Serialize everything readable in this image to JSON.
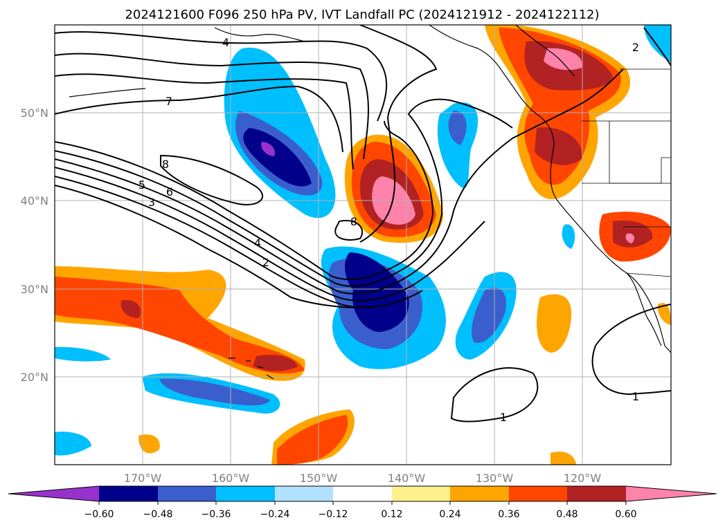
{
  "title": "2024121600 F096 250 hPa PV, IVT Landfall PC (2024121912 - 2024122112)",
  "lat_labels": [
    "50°N",
    "40°N",
    "30°N",
    "20°N"
  ],
  "lon_labels": [
    "170°W",
    "160°W",
    "150°W",
    "140°W",
    "130°W",
    "120°W"
  ],
  "colorbar": {
    "ticks": [
      "−0.60",
      "−0.48",
      "−0.36",
      "−0.24",
      "−0.12",
      "0.12",
      "0.24",
      "0.36",
      "0.48",
      "0.60"
    ],
    "colors": [
      "#9932cc",
      "#00008b",
      "#3a5fcd",
      "#00bfff",
      "#b0e2ff",
      "#ffffff",
      "#fff08c",
      "#ffa500",
      "#ff4500",
      "#b22222",
      "#ff82ab"
    ]
  },
  "contour_labels": [
    "4",
    "7",
    "8",
    "5",
    "6",
    "3",
    "8",
    "4",
    "2",
    "2",
    "1",
    "1"
  ],
  "map_extent": {
    "lon_min": -180,
    "lon_max": -110,
    "lat_min": 10,
    "lat_max": 60
  }
}
